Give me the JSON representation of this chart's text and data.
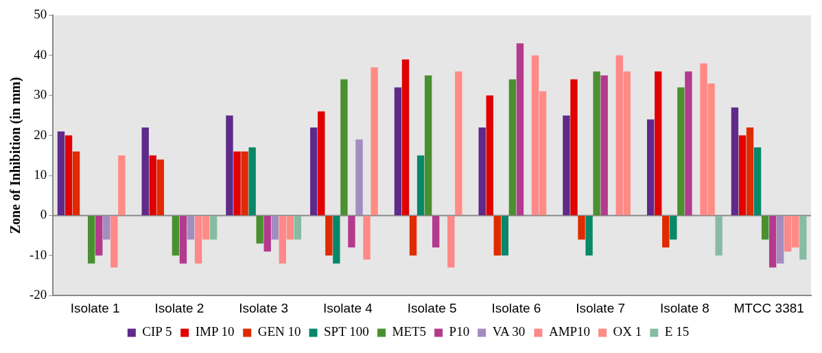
{
  "chart_data": {
    "type": "bar",
    "ylabel": "Zone of Inhibition (in mm)",
    "categories": [
      "Isolate 1",
      "Isolate 2",
      "Isolate 3",
      "Isolate 4",
      "Isolate 5",
      "Isolate 6",
      "Isolate 7",
      "Isolate 8",
      "MTCC 3381"
    ],
    "series": [
      {
        "name": "CIP 5",
        "color": "#5f2a8a",
        "values": [
          21,
          22,
          25,
          22,
          32,
          22,
          25,
          24,
          27
        ]
      },
      {
        "name": "IMP 10",
        "color": "#e00000",
        "values": [
          20,
          15,
          16,
          26,
          39,
          30,
          34,
          36,
          20
        ]
      },
      {
        "name": "GEN 10",
        "color": "#e02a00",
        "values": [
          16,
          14,
          16,
          -10,
          -10,
          -10,
          -6,
          -8,
          22
        ]
      },
      {
        "name": "SPT 100",
        "color": "#088868",
        "values": [
          0,
          0,
          17,
          -12,
          15,
          -10,
          -10,
          -6,
          17
        ]
      },
      {
        "name": "MET5",
        "color": "#4a9030",
        "values": [
          -12,
          -10,
          -7,
          34,
          35,
          34,
          36,
          32,
          -6
        ]
      },
      {
        "name": "P10",
        "color": "#b43a8e",
        "values": [
          -10,
          -12,
          -9,
          -8,
          -8,
          43,
          35,
          36,
          -13
        ]
      },
      {
        "name": "VA 30",
        "color": "#a38cc0",
        "values": [
          -6,
          -6,
          -6,
          19,
          0,
          0,
          0,
          0,
          -12
        ]
      },
      {
        "name": "AMP10",
        "color": "#ff8888",
        "values": [
          -13,
          -12,
          -12,
          -11,
          -13,
          40,
          40,
          38,
          -9
        ]
      },
      {
        "name": "OX 1",
        "color": "#ff8c84",
        "values": [
          15,
          -6,
          -6,
          37,
          36,
          31,
          36,
          33,
          -8
        ]
      },
      {
        "name": "E 15",
        "color": "#88bba4",
        "values": [
          0,
          -6,
          -6,
          0,
          0,
          0,
          0,
          -10,
          -11
        ]
      }
    ],
    "ylim": [
      -20,
      50
    ],
    "yticks": [
      -20,
      -10,
      0,
      10,
      20,
      30,
      40,
      50
    ],
    "ref_lines": [
      {
        "axis": "y",
        "value": 0,
        "color": "#888888"
      }
    ],
    "grid": false,
    "legend": "bottom"
  }
}
